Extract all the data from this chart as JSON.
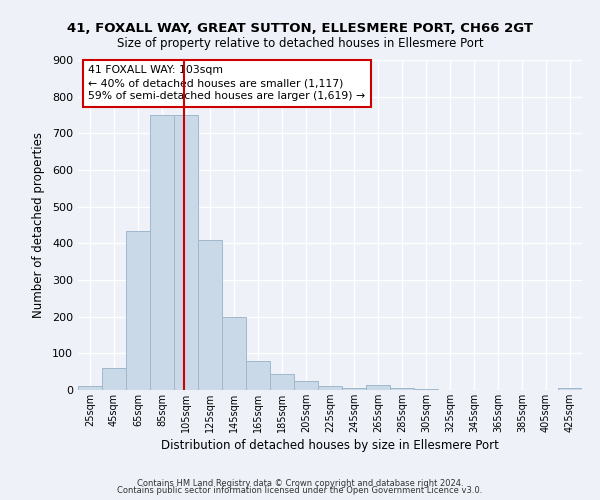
{
  "title_line1": "41, FOXALL WAY, GREAT SUTTON, ELLESMERE PORT, CH66 2GT",
  "title_line2": "Size of property relative to detached houses in Ellesmere Port",
  "xlabel": "Distribution of detached houses by size in Ellesmere Port",
  "ylabel": "Number of detached properties",
  "bin_edges": [
    15,
    35,
    55,
    75,
    95,
    115,
    135,
    155,
    175,
    195,
    215,
    235,
    255,
    275,
    295,
    315,
    335,
    355,
    375,
    395,
    415,
    435
  ],
  "bin_labels": [
    "25sqm",
    "45sqm",
    "65sqm",
    "85sqm",
    "105sqm",
    "125sqm",
    "145sqm",
    "165sqm",
    "185sqm",
    "205sqm",
    "225sqm",
    "245sqm",
    "265sqm",
    "285sqm",
    "305sqm",
    "325sqm",
    "345sqm",
    "365sqm",
    "385sqm",
    "405sqm",
    "425sqm"
  ],
  "counts": [
    10,
    60,
    435,
    750,
    750,
    410,
    200,
    78,
    43,
    25,
    10,
    5,
    15,
    5,
    2,
    0,
    0,
    0,
    0,
    0,
    5
  ],
  "bar_color": "#c9d9e8",
  "bar_edge_color": "#a0b8cc",
  "vline_x": 103,
  "vline_color": "#cc0000",
  "annotation_line1": "41 FOXALL WAY: 103sqm",
  "annotation_line2": "← 40% of detached houses are smaller (1,117)",
  "annotation_line3": "59% of semi-detached houses are larger (1,619) →",
  "annotation_box_color": "#ffffff",
  "annotation_box_edge": "#cc0000",
  "ylim": [
    0,
    900
  ],
  "yticks": [
    0,
    100,
    200,
    300,
    400,
    500,
    600,
    700,
    800,
    900
  ],
  "footer_line1": "Contains HM Land Registry data © Crown copyright and database right 2024.",
  "footer_line2": "Contains public sector information licensed under the Open Government Licence v3.0.",
  "bg_color": "#eef2f8",
  "grid_color": "#ffffff"
}
